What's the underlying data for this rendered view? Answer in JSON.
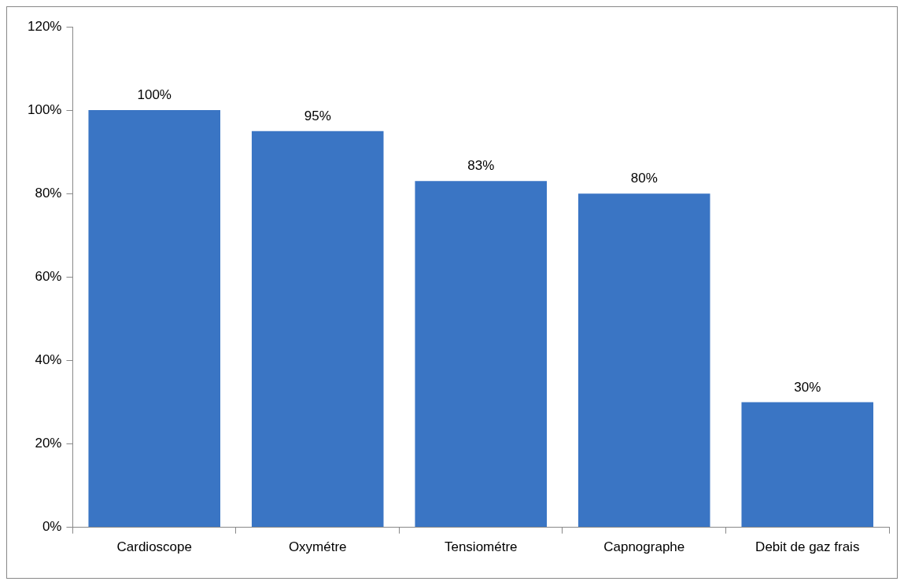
{
  "chart_data": {
    "type": "bar",
    "categories": [
      "Cardioscope",
      "Oxymétre",
      "Tensiométre",
      "Capnographe",
      "Debit de gaz frais"
    ],
    "values": [
      100,
      95,
      83,
      80,
      30
    ],
    "value_labels": [
      "100%",
      "95%",
      "83%",
      "80%",
      "30%"
    ],
    "color": "#3a75c4",
    "ylim": [
      0,
      120
    ],
    "yticks": [
      {
        "value": 0,
        "label": "0%"
      },
      {
        "value": 20,
        "label": "20%"
      },
      {
        "value": 40,
        "label": "40%"
      },
      {
        "value": 60,
        "label": "60%"
      },
      {
        "value": 80,
        "label": "80%"
      },
      {
        "value": 100,
        "label": "100%"
      },
      {
        "value": 120,
        "label": "120%"
      }
    ],
    "grid": false,
    "legend": false
  }
}
